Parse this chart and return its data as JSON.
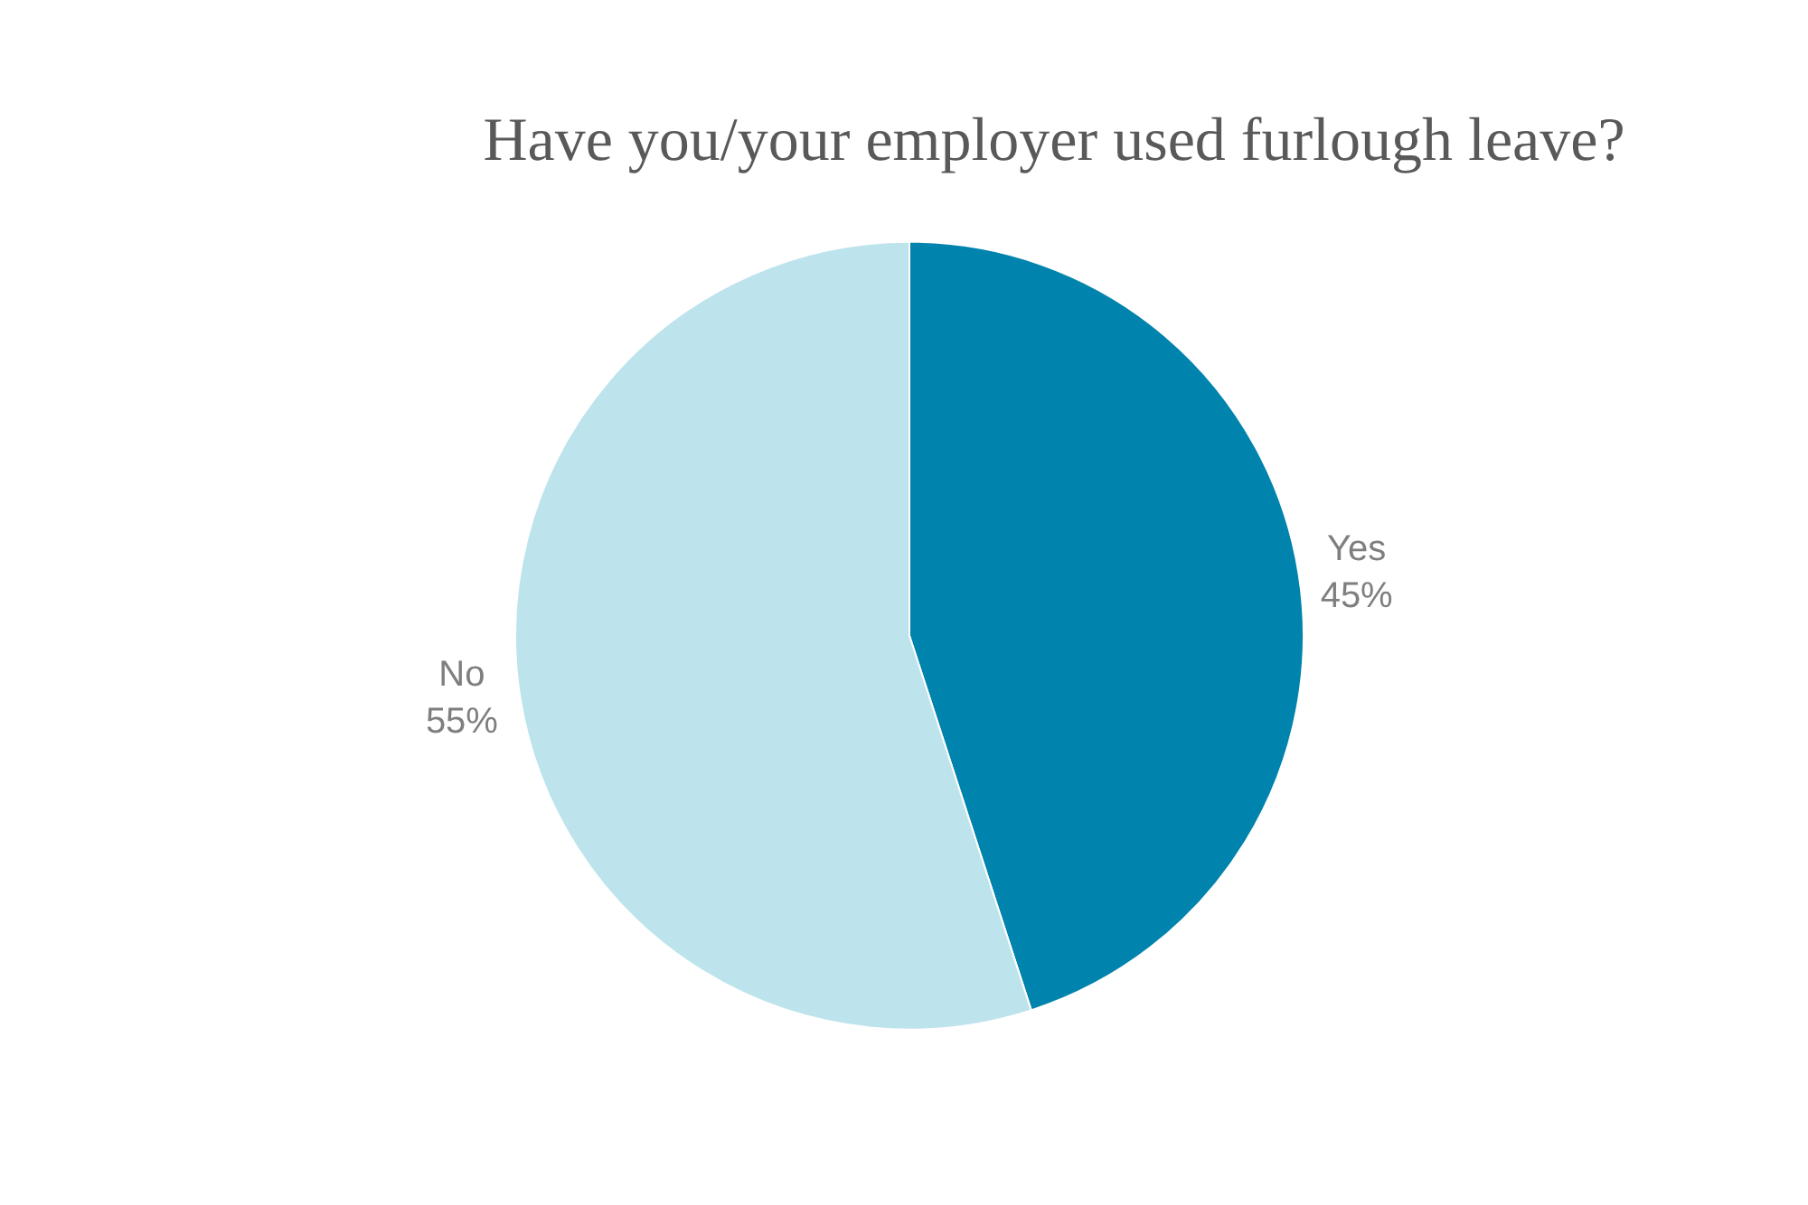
{
  "chart_data": {
    "type": "pie",
    "title": "Have you/your employer used furlough leave?",
    "categories": [
      "Yes",
      "No"
    ],
    "values": [
      45,
      55
    ],
    "colors": [
      "#0083ad",
      "#bde3ec"
    ],
    "value_labels": [
      "45%",
      "55%"
    ]
  }
}
